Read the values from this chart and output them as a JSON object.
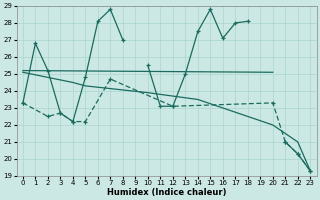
{
  "xlabel": "Humidex (Indice chaleur)",
  "bg_color": "#cce8e4",
  "grid_color": "#aad4ce",
  "line_color": "#1a6b5e",
  "xlim": [
    -0.5,
    23.5
  ],
  "ylim": [
    19,
    29
  ],
  "yticks": [
    19,
    20,
    21,
    22,
    23,
    24,
    25,
    26,
    27,
    28,
    29
  ],
  "xticks": [
    0,
    1,
    2,
    3,
    4,
    5,
    6,
    7,
    8,
    9,
    10,
    11,
    12,
    13,
    14,
    15,
    16,
    17,
    18,
    19,
    20,
    21,
    22,
    23
  ],
  "line1": {
    "x": [
      0,
      1,
      2,
      3,
      4,
      5,
      6,
      7,
      8,
      10,
      11,
      12,
      13,
      14,
      15,
      16,
      17,
      18,
      21,
      22,
      23
    ],
    "y": [
      23.3,
      26.8,
      25.2,
      22.7,
      22.2,
      24.8,
      28.1,
      28.8,
      27.0,
      25.5,
      23.1,
      23.1,
      25.0,
      27.5,
      28.8,
      27.1,
      28.0,
      28.1,
      21.0,
      20.3,
      19.3
    ]
  },
  "line2": {
    "x": [
      0,
      20
    ],
    "y": [
      25.2,
      25.1
    ]
  },
  "line3": {
    "x": [
      0,
      2,
      4,
      5,
      10,
      14,
      20,
      21,
      22,
      23
    ],
    "y": [
      25.1,
      24.8,
      24.5,
      24.3,
      23.9,
      23.5,
      22.0,
      21.5,
      21.0,
      19.3
    ]
  },
  "line4": {
    "x": [
      0,
      2,
      3,
      4,
      5,
      7,
      12,
      20,
      21,
      22,
      23
    ],
    "y": [
      23.3,
      22.5,
      22.7,
      22.2,
      22.2,
      24.7,
      23.1,
      23.3,
      21.0,
      20.3,
      19.3
    ]
  }
}
